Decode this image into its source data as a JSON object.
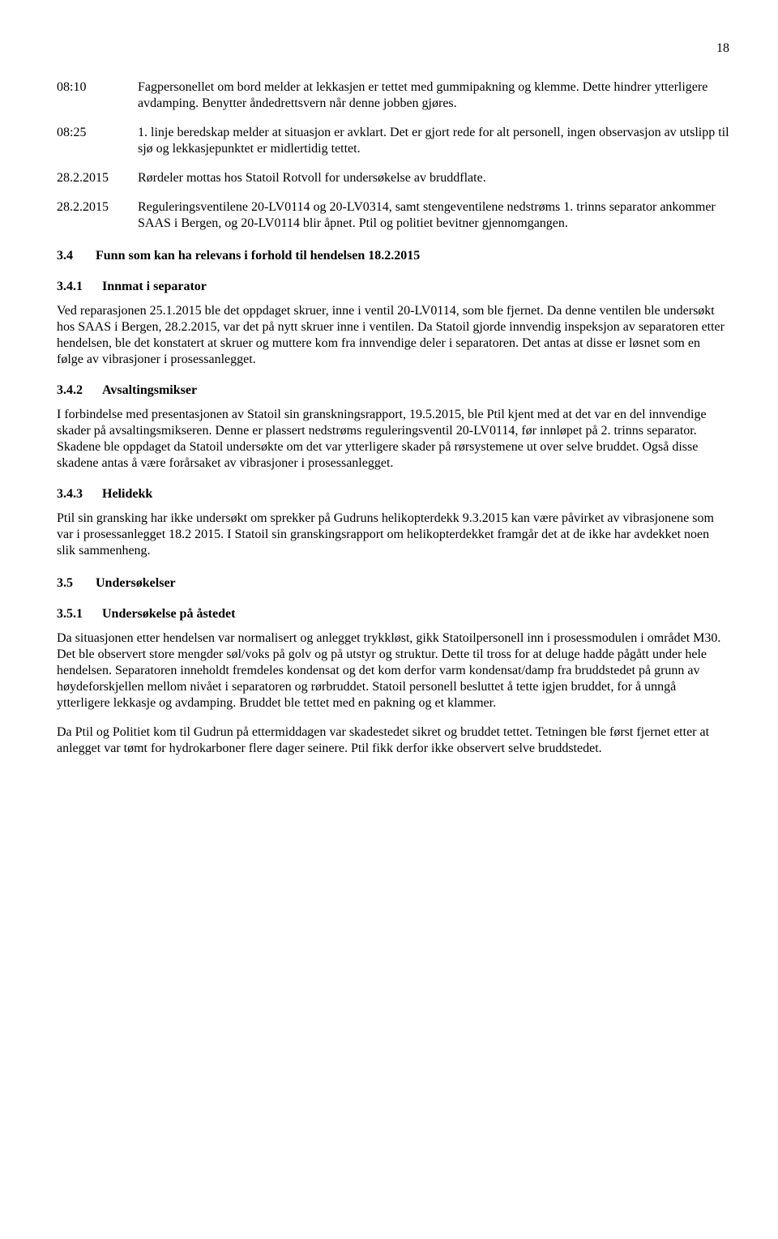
{
  "page_number": "18",
  "timeline": [
    {
      "time": "08:10",
      "text": "Fagpersonellet om bord melder at lekkasjen er tettet med gummipakning og klemme. Dette hindrer ytterligere avdamping. Benytter åndedrettsvern når denne jobben gjøres."
    },
    {
      "time": "08:25",
      "text": "1. linje beredskap melder at situasjon er avklart. Det er gjort rede for alt personell, ingen observasjon av utslipp til sjø og lekkasjepunktet er midlertidig tettet."
    },
    {
      "time": "28.2.2015",
      "text": "Rørdeler mottas hos Statoil Rotvoll for undersøkelse av bruddflate."
    },
    {
      "time": "28.2.2015",
      "text": "Reguleringsventilene 20-LV0114 og 20-LV0314, samt stengeventilene nedstrøms 1. trinns separator ankommer SAAS i Bergen, og 20-LV0114 blir åpnet. Ptil og politiet bevitner gjennomgangen."
    }
  ],
  "sections": {
    "s34": {
      "num": "3.4",
      "title": "Funn som kan ha relevans i forhold til hendelsen 18.2.2015"
    },
    "s341": {
      "num": "3.4.1",
      "title": "Innmat i separator",
      "para": "Ved reparasjonen 25.1.2015 ble det oppdaget skruer, inne i ventil 20-LV0114, som ble fjernet. Da denne ventilen ble undersøkt hos SAAS i Bergen, 28.2.2015, var det på nytt skruer inne i ventilen. Da Statoil gjorde innvendig inspeksjon av separatoren etter hendelsen, ble det konstatert at skruer og muttere kom fra innvendige deler i separatoren. Det antas at disse er løsnet som en følge av vibrasjoner i prosessanlegget."
    },
    "s342": {
      "num": "3.4.2",
      "title": "Avsaltingsmikser",
      "para": "I forbindelse med presentasjonen av Statoil sin granskningsrapport, 19.5.2015, ble Ptil kjent med at det var en del innvendige skader på avsaltingsmikseren. Denne er plassert nedstrøms reguleringsventil 20-LV0114, før innløpet på 2. trinns separator. Skadene ble oppdaget da Statoil undersøkte om det var ytterligere skader på rørsystemene ut over selve bruddet. Også disse skadene antas å være forårsaket av vibrasjoner i prosessanlegget."
    },
    "s343": {
      "num": "3.4.3",
      "title": "Helidekk",
      "para": "Ptil sin gransking har ikke undersøkt om sprekker på Gudruns helikopterdekk 9.3.2015 kan være påvirket av vibrasjonene som var i prosessanlegget 18.2 2015. I Statoil sin granskingsrapport om helikopterdekket framgår det at de ikke har avdekket noen slik sammenheng."
    },
    "s35": {
      "num": "3.5",
      "title": "Undersøkelser"
    },
    "s351": {
      "num": "3.5.1",
      "title": "Undersøkelse på åstedet",
      "para1": "Da situasjonen etter hendelsen var normalisert og anlegget trykkløst, gikk Statoilpersonell inn i prosessmodulen i området M30. Det ble observert store mengder søl/voks på golv og på utstyr og struktur. Dette til tross for at deluge hadde pågått under hele hendelsen. Separatoren inneholdt fremdeles kondensat og det kom derfor varm kondensat/damp fra bruddstedet på grunn av høydeforskjellen mellom nivået i separatoren og rørbruddet. Statoil personell besluttet å tette igjen bruddet, for å unngå ytterligere lekkasje og avdamping. Bruddet ble tettet med en pakning og et klammer.",
      "para2": "Da Ptil og Politiet kom til Gudrun på ettermiddagen var skadestedet sikret og bruddet tettet. Tetningen ble først fjernet etter at anlegget var tømt for hydrokarboner flere dager seinere. Ptil fikk derfor ikke observert selve bruddstedet."
    }
  }
}
